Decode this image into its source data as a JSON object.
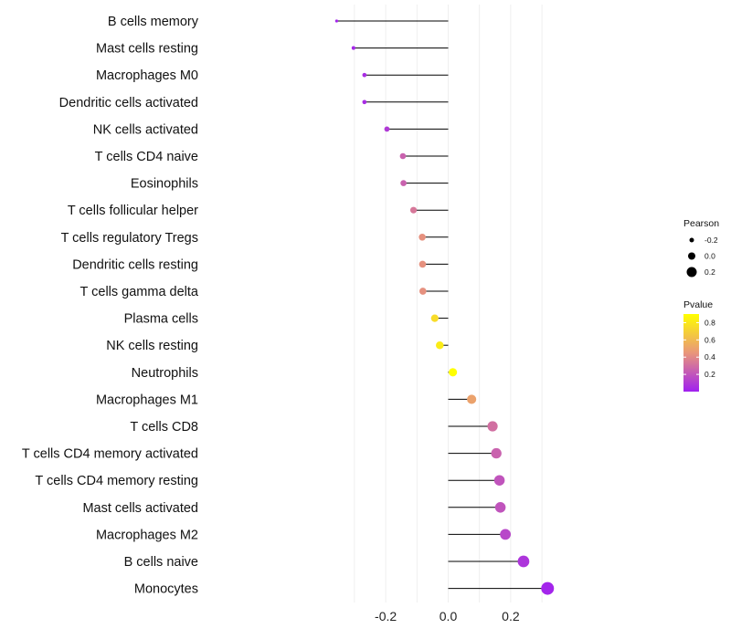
{
  "chart_data": {
    "type": "lollipop",
    "title": "",
    "xlabel": "",
    "ylabel": "",
    "xlim": [
      -0.37,
      0.33
    ],
    "x_ticks": [
      -0.2,
      0.0,
      0.2
    ],
    "x_tick_labels": [
      "-0.2",
      "0.0",
      "0.2"
    ],
    "grid": true,
    "categories": [
      "B cells memory",
      "Mast cells resting",
      "Macrophages M0",
      "Dendritic cells activated",
      "NK cells activated",
      "T cells CD4 naive",
      "Eosinophils",
      "T cells follicular helper",
      "T cells regulatory  Tregs",
      "Dendritic cells resting",
      "T cells gamma delta",
      "Plasma cells",
      "NK cells resting",
      "Neutrophils",
      "Macrophages M1",
      "T cells CD8",
      "T cells CD4 memory activated",
      "T cells CD4 memory resting",
      "Mast cells activated",
      "Macrophages M2",
      "B cells naive",
      "Monocytes"
    ],
    "pearson": [
      -0.357,
      -0.303,
      -0.268,
      -0.268,
      -0.196,
      -0.145,
      -0.143,
      -0.111,
      -0.083,
      -0.082,
      -0.081,
      -0.043,
      -0.027,
      0.015,
      0.075,
      0.142,
      0.154,
      0.164,
      0.167,
      0.183,
      0.241,
      0.318
    ],
    "pvalue": [
      0.02,
      0.03,
      0.05,
      0.05,
      0.1,
      0.25,
      0.25,
      0.33,
      0.43,
      0.43,
      0.43,
      0.75,
      0.82,
      0.9,
      0.5,
      0.3,
      0.25,
      0.2,
      0.2,
      0.15,
      0.08,
      0.02
    ],
    "legend_size": {
      "title": "Pearson",
      "labels": [
        "-0.2",
        "0.0",
        "0.2"
      ],
      "values": [
        -0.2,
        0.0,
        0.2
      ]
    },
    "legend_color": {
      "title": "Pvalue",
      "labels": [
        "0.8",
        "0.6",
        "0.4",
        "0.2"
      ],
      "values": [
        0.8,
        0.6,
        0.4,
        0.2
      ],
      "range": [
        0.0,
        0.9
      ],
      "color_low": "#a020f0",
      "color_mid": "#e9967a",
      "color_high": "#ffff00"
    },
    "legend_position": "right"
  }
}
